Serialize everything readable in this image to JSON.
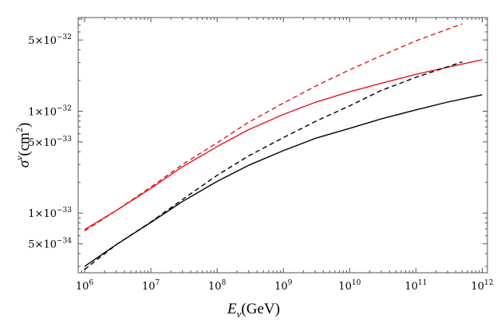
{
  "chart_data": {
    "type": "line",
    "title": "",
    "xlabel": {
      "base": "E",
      "sub": "ν",
      "rest": "(GeV)"
    },
    "ylabel": {
      "base": "σ",
      "sup": "ν",
      "rest": "(cm",
      "unit_sup": "2",
      "close": ")"
    },
    "x_scale": "log",
    "y_scale": "log",
    "xlim": [
      800000,
      1200000000000
    ],
    "ylim": [
      2.6e-34,
      8.3e-32
    ],
    "grid": false,
    "legend": "none",
    "x_ticks": [
      {
        "value": 1000000.0,
        "mantissa": "10",
        "exp": "6"
      },
      {
        "value": 10000000.0,
        "mantissa": "10",
        "exp": "7"
      },
      {
        "value": 100000000.0,
        "mantissa": "10",
        "exp": "8"
      },
      {
        "value": 1000000000.0,
        "mantissa": "10",
        "exp": "9"
      },
      {
        "value": 10000000000.0,
        "mantissa": "10",
        "exp": "10"
      },
      {
        "value": 100000000000.0,
        "mantissa": "10",
        "exp": "11"
      },
      {
        "value": 1000000000000.0,
        "mantissa": "10",
        "exp": "12"
      }
    ],
    "y_ticks": [
      {
        "value": 5e-34,
        "mantissa": "5×10",
        "exp": "−34"
      },
      {
        "value": 1e-33,
        "mantissa": "1×10",
        "exp": "−33"
      },
      {
        "value": 5e-33,
        "mantissa": "5×10",
        "exp": "−33"
      },
      {
        "value": 1e-32,
        "mantissa": "1×10",
        "exp": "−32"
      },
      {
        "value": 5e-32,
        "mantissa": "5×10",
        "exp": "−32"
      }
    ],
    "series": [
      {
        "color": "#e8161b",
        "dash": "solid",
        "x": [
          1000000.0,
          3000000.0,
          10000000.0,
          30000000.0,
          100000000.0,
          300000000.0,
          1000000000.0,
          3000000000.0,
          10000000000.0,
          30000000000.0,
          100000000000.0,
          300000000000.0,
          1000000000000.0
        ],
        "y": [
          6.9e-34,
          1.06e-33,
          1.75e-33,
          2.85e-33,
          4.5e-33,
          6.6e-33,
          9.3e-33,
          1.22e-32,
          1.55e-32,
          1.88e-32,
          2.3e-32,
          2.7e-32,
          3.2e-32
        ]
      },
      {
        "color": "#e8161b",
        "dash": "dashed",
        "x": [
          1000000.0,
          3000000.0,
          10000000.0,
          30000000.0,
          100000000.0,
          300000000.0,
          1000000000.0,
          3000000000.0,
          10000000000.0,
          30000000000.0,
          100000000000.0,
          500000000000.0
        ],
        "y": [
          6.7e-34,
          1.06e-33,
          1.8e-33,
          3e-33,
          4.9e-33,
          7.8e-33,
          1.2e-32,
          1.75e-32,
          2.55e-32,
          3.5e-32,
          4.9e-32,
          7.2e-32
        ]
      },
      {
        "color": "#000000",
        "dash": "solid",
        "x": [
          1000000.0,
          3000000.0,
          10000000.0,
          30000000.0,
          100000000.0,
          300000000.0,
          1000000000.0,
          3000000000.0,
          10000000000.0,
          30000000000.0,
          100000000000.0,
          300000000000.0,
          1000000000000.0
        ],
        "y": [
          3e-34,
          4.9e-34,
          8.1e-34,
          1.3e-33,
          2.05e-33,
          2.95e-33,
          4.1e-33,
          5.4e-33,
          6.8e-33,
          8.4e-33,
          1.03e-32,
          1.23e-32,
          1.45e-32
        ]
      },
      {
        "color": "#000000",
        "dash": "dashed",
        "x": [
          1000000.0,
          3000000.0,
          10000000.0,
          30000000.0,
          100000000.0,
          300000000.0,
          1000000000.0,
          3000000000.0,
          10000000000.0,
          30000000000.0,
          100000000000.0,
          500000000000.0
        ],
        "y": [
          2.8e-34,
          4.9e-34,
          8.2e-34,
          1.36e-33,
          2.35e-33,
          3.65e-33,
          5.5e-33,
          7.9e-33,
          1.13e-32,
          1.6e-32,
          2.15e-32,
          3.05e-32
        ]
      }
    ]
  }
}
